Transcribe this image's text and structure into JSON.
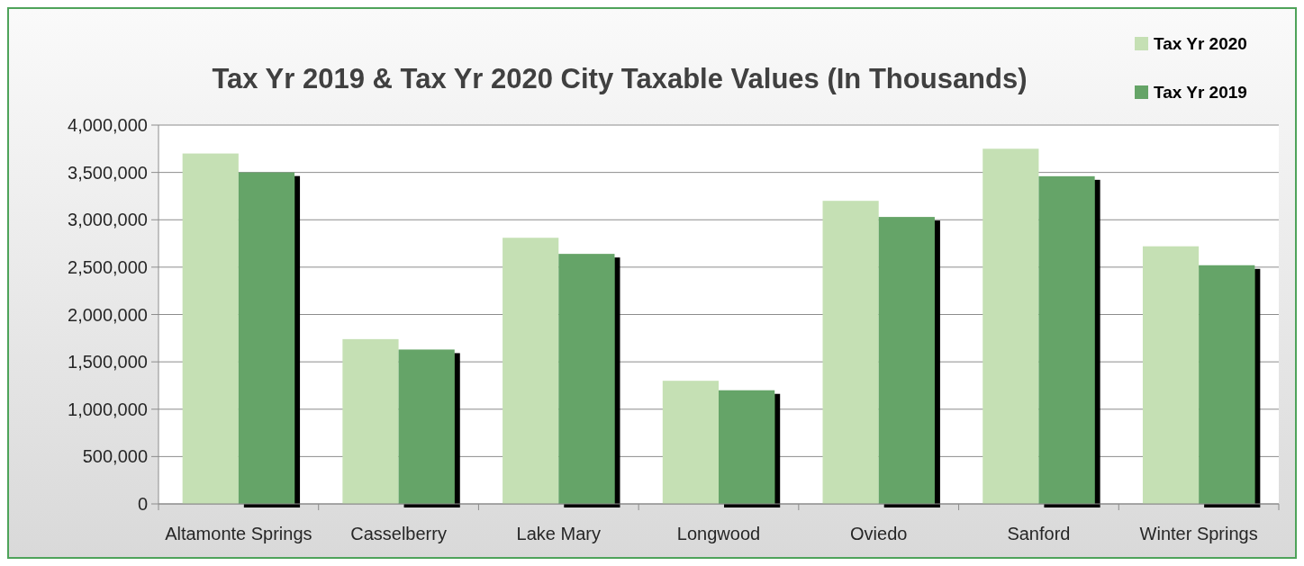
{
  "chart_data": {
    "type": "bar",
    "title": "Tax Yr 2019 & Tax Yr 2020 City Taxable Values (In Thousands)",
    "categories": [
      "Altamonte Springs",
      "Casselberry",
      "Lake Mary",
      "Longwood",
      "Oviedo",
      "Sanford",
      "Winter Springs"
    ],
    "series": [
      {
        "name": "Tax Yr 2020",
        "color": "#c5e0b4",
        "values": [
          3700000,
          1740000,
          2810000,
          1300000,
          3200000,
          3750000,
          2720000
        ]
      },
      {
        "name": "Tax Yr 2019",
        "color": "#65a467",
        "values": [
          3500000,
          1630000,
          2640000,
          1200000,
          3030000,
          3460000,
          2520000
        ]
      }
    ],
    "ylim": [
      0,
      4000000
    ],
    "yticks": [
      {
        "value": 0,
        "label": "0"
      },
      {
        "value": 500000,
        "label": "500,000"
      },
      {
        "value": 1000000,
        "label": "1,000,000"
      },
      {
        "value": 1500000,
        "label": "1,500,000"
      },
      {
        "value": 2000000,
        "label": "2,000,000"
      },
      {
        "value": 2500000,
        "label": "2,500,000"
      },
      {
        "value": 3000000,
        "label": "3,000,000"
      },
      {
        "value": 3500000,
        "label": "3,500,000"
      },
      {
        "value": 4000000,
        "label": "4,000,000"
      }
    ],
    "grid": "y",
    "legend": "top right"
  }
}
